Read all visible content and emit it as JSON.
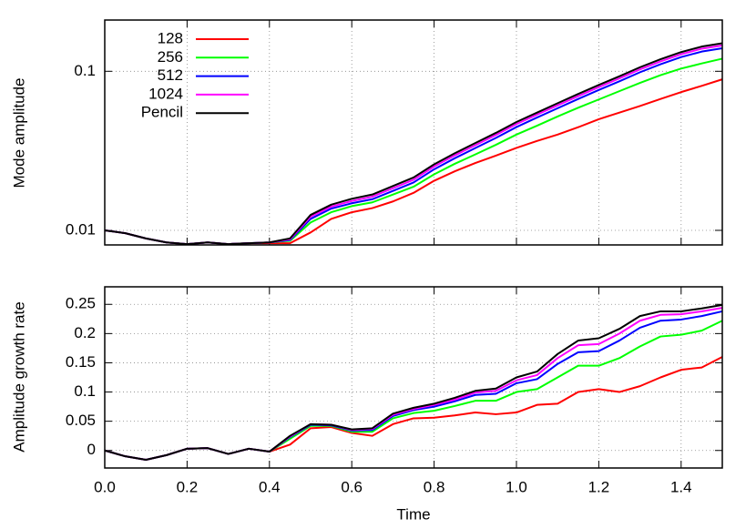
{
  "chart_data": [
    {
      "type": "line",
      "ylabel": "Mode amplitude",
      "ylog": true,
      "grid": true,
      "legend": "upper left",
      "xlim": [
        0,
        1.5
      ],
      "ylim": [
        0.0081,
        0.21
      ],
      "yticks": [
        0.01,
        0.1
      ],
      "x": [
        0,
        0.05,
        0.1,
        0.15,
        0.2,
        0.25,
        0.3,
        0.35,
        0.4,
        0.45,
        0.5,
        0.55,
        0.6,
        0.65,
        0.7,
        0.75,
        0.8,
        0.85,
        0.9,
        0.95,
        1.0,
        1.05,
        1.1,
        1.15,
        1.2,
        1.25,
        1.3,
        1.35,
        1.4,
        1.45,
        1.5
      ],
      "series": [
        {
          "name": "128",
          "color": "#ff0000",
          "values": [
            0.01,
            0.0096,
            0.0089,
            0.0084,
            0.0082,
            0.0084,
            0.0082,
            0.0083,
            0.0083,
            0.0083,
            0.0097,
            0.0118,
            0.013,
            0.0138,
            0.0152,
            0.0172,
            0.0205,
            0.0235,
            0.0265,
            0.0295,
            0.033,
            0.0365,
            0.04,
            0.0445,
            0.05,
            0.055,
            0.0605,
            0.067,
            0.074,
            0.081,
            0.089
          ]
        },
        {
          "name": "256",
          "color": "#00ff00",
          "values": [
            0.01,
            0.0096,
            0.0089,
            0.0084,
            0.0082,
            0.0084,
            0.0082,
            0.0083,
            0.0084,
            0.0086,
            0.0112,
            0.013,
            0.0142,
            0.015,
            0.0168,
            0.0188,
            0.0225,
            0.0262,
            0.03,
            0.0345,
            0.04,
            0.0455,
            0.052,
            0.059,
            0.0665,
            0.075,
            0.0845,
            0.0945,
            0.104,
            0.112,
            0.12
          ]
        },
        {
          "name": "512",
          "color": "#0000ff",
          "values": [
            0.01,
            0.0096,
            0.0089,
            0.0084,
            0.0082,
            0.0084,
            0.0082,
            0.0083,
            0.0084,
            0.0087,
            0.0118,
            0.0137,
            0.0148,
            0.0157,
            0.0177,
            0.02,
            0.0242,
            0.0284,
            0.0329,
            0.0381,
            0.0446,
            0.0512,
            0.0586,
            0.067,
            0.0763,
            0.0865,
            0.0986,
            0.1107,
            0.1228,
            0.133,
            0.1395
          ]
        },
        {
          "name": "1024",
          "color": "#ff00ff",
          "values": [
            0.01,
            0.0096,
            0.0089,
            0.0084,
            0.0082,
            0.0084,
            0.0082,
            0.0083,
            0.0084,
            0.0088,
            0.0122,
            0.0141,
            0.0153,
            0.0163,
            0.0184,
            0.0208,
            0.0252,
            0.0296,
            0.0343,
            0.0398,
            0.0466,
            0.0534,
            0.0611,
            0.0698,
            0.0795,
            0.0902,
            0.1028,
            0.1154,
            0.128,
            0.1387,
            0.1455
          ]
        },
        {
          "name": "Pencil",
          "color": "#000000",
          "values": [
            0.01,
            0.0096,
            0.0089,
            0.0084,
            0.0082,
            0.0084,
            0.0082,
            0.0083,
            0.0084,
            0.0089,
            0.0125,
            0.0145,
            0.0158,
            0.0168,
            0.019,
            0.0215,
            0.026,
            0.0305,
            0.0354,
            0.041,
            0.048,
            0.055,
            0.063,
            0.072,
            0.082,
            0.093,
            0.106,
            0.119,
            0.132,
            0.143,
            0.15
          ]
        }
      ]
    },
    {
      "type": "line",
      "ylabel": "Amplitude growth rate",
      "xlabel": "Time",
      "grid": true,
      "xlim": [
        0,
        1.5
      ],
      "ylim": [
        -0.03,
        0.28
      ],
      "xticks": [
        {
          "value": 0,
          "label": "0.0"
        },
        0.2,
        0.4,
        0.6,
        0.8,
        {
          "value": 1,
          "label": "1.0"
        },
        1.2,
        1.4
      ],
      "yticks": [
        0,
        0.05,
        0.1,
        0.15,
        0.2,
        0.25
      ],
      "x": [
        0,
        0.05,
        0.1,
        0.15,
        0.2,
        0.25,
        0.3,
        0.35,
        0.4,
        0.45,
        0.5,
        0.55,
        0.6,
        0.65,
        0.7,
        0.75,
        0.8,
        0.85,
        0.9,
        0.95,
        1.0,
        1.05,
        1.1,
        1.15,
        1.2,
        1.25,
        1.3,
        1.35,
        1.4,
        1.45,
        1.5
      ],
      "series": [
        {
          "name": "128",
          "color": "#ff0000",
          "values": [
            0,
            -0.01,
            -0.016,
            -0.008,
            0.003,
            0.004,
            -0.006,
            0.003,
            -0.002,
            0.01,
            0.038,
            0.04,
            0.03,
            0.025,
            0.045,
            0.055,
            0.056,
            0.06,
            0.065,
            0.062,
            0.065,
            0.078,
            0.08,
            0.1,
            0.105,
            0.1,
            0.11,
            0.125,
            0.138,
            0.142,
            0.16
          ]
        },
        {
          "name": "256",
          "color": "#00ff00",
          "values": [
            0,
            -0.01,
            -0.016,
            -0.008,
            0.003,
            0.004,
            -0.006,
            0.003,
            -0.002,
            0.02,
            0.042,
            0.042,
            0.032,
            0.032,
            0.055,
            0.064,
            0.068,
            0.076,
            0.085,
            0.085,
            0.1,
            0.105,
            0.125,
            0.145,
            0.145,
            0.158,
            0.178,
            0.195,
            0.198,
            0.205,
            0.222
          ]
        },
        {
          "name": "512",
          "color": "#0000ff",
          "values": [
            0,
            -0.01,
            -0.016,
            -0.008,
            0.003,
            0.004,
            -0.006,
            0.003,
            -0.002,
            0.023,
            0.044,
            0.043,
            0.034,
            0.035,
            0.059,
            0.069,
            0.075,
            0.084,
            0.095,
            0.097,
            0.115,
            0.122,
            0.148,
            0.168,
            0.17,
            0.188,
            0.21,
            0.222,
            0.224,
            0.23,
            0.238
          ]
        },
        {
          "name": "1024",
          "color": "#ff00ff",
          "values": [
            0,
            -0.01,
            -0.016,
            -0.008,
            0.003,
            0.004,
            -0.006,
            0.003,
            -0.002,
            0.024,
            0.045,
            0.044,
            0.035,
            0.037,
            0.061,
            0.071,
            0.078,
            0.087,
            0.099,
            0.102,
            0.12,
            0.129,
            0.158,
            0.18,
            0.182,
            0.2,
            0.222,
            0.232,
            0.233,
            0.238,
            0.244
          ]
        },
        {
          "name": "Pencil",
          "color": "#000000",
          "values": [
            0,
            -0.01,
            -0.016,
            -0.008,
            0.003,
            0.004,
            -0.006,
            0.003,
            -0.002,
            0.025,
            0.045,
            0.044,
            0.036,
            0.038,
            0.063,
            0.073,
            0.08,
            0.09,
            0.102,
            0.106,
            0.125,
            0.135,
            0.165,
            0.188,
            0.192,
            0.208,
            0.23,
            0.238,
            0.238,
            0.243,
            0.249
          ]
        }
      ]
    }
  ]
}
